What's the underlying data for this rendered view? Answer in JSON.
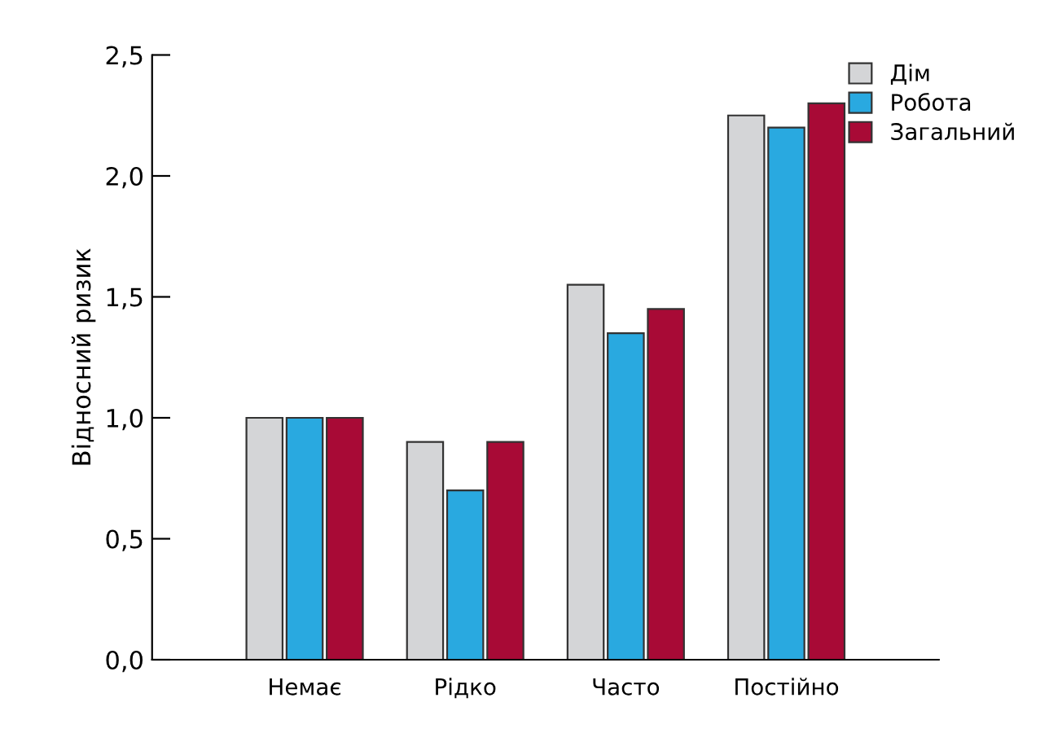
{
  "chart_data": {
    "type": "bar",
    "ylabel": "Відносний ризик",
    "categories": [
      "Немає",
      "Рідко",
      "Часто",
      "Постійно"
    ],
    "series": [
      {
        "name": "Дім",
        "color": "#d4d5d7",
        "values": [
          1.0,
          0.9,
          1.55,
          2.25
        ]
      },
      {
        "name": "Робота",
        "color": "#29a9e0",
        "values": [
          1.0,
          0.7,
          1.35,
          2.2
        ]
      },
      {
        "name": "Загальний",
        "color": "#a80a36",
        "values": [
          1.0,
          0.9,
          1.45,
          2.3
        ]
      }
    ],
    "ylim": [
      0,
      2.5
    ],
    "yticks": [
      {
        "value": 0,
        "label": "0,0"
      },
      {
        "value": 0.5,
        "label": "0,5"
      },
      {
        "value": 1,
        "label": "1,0"
      },
      {
        "value": 1.5,
        "label": "1,5"
      },
      {
        "value": 2,
        "label": "2,0"
      },
      {
        "value": 2.5,
        "label": "2,5"
      }
    ],
    "grid": false,
    "legend": "top right"
  }
}
